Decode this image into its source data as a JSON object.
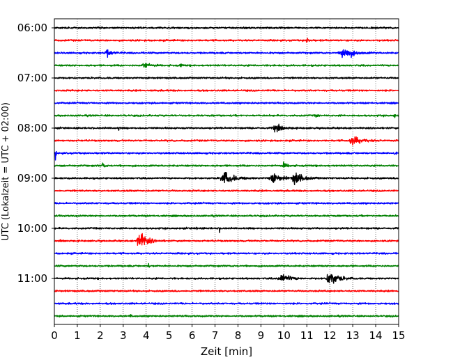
{
  "chart_data": {
    "type": "line",
    "title": "",
    "xlabel": "Zeit  [min]",
    "ylabel": "UTC (Lokalzeit = UTC + 02:00)",
    "xlim": [
      0,
      15
    ],
    "x_ticks": [
      0,
      1,
      2,
      3,
      4,
      5,
      6,
      7,
      8,
      9,
      10,
      11,
      12,
      13,
      14,
      15
    ],
    "y_tick_labels": [
      "06:00",
      "07:00",
      "08:00",
      "09:00",
      "10:00",
      "11:00"
    ],
    "grid": "vertical dotted",
    "legend": "none",
    "row_interval_minutes": 15,
    "color_cycle": [
      "#000000",
      "#ff0000",
      "#0000ff",
      "#008000"
    ],
    "series": [
      {
        "row_start": "06:00",
        "color": "#000000",
        "events": []
      },
      {
        "row_start": "06:15",
        "color": "#ff0000",
        "events": [
          {
            "t": 11.0,
            "amp": 1.3,
            "dur": 0.1
          }
        ]
      },
      {
        "row_start": "06:30",
        "color": "#0000ff",
        "events": [
          {
            "t": 2.3,
            "amp": 1.6,
            "dur": 0.25
          },
          {
            "t": 12.6,
            "amp": 2.8,
            "dur": 0.45
          }
        ]
      },
      {
        "row_start": "06:45",
        "color": "#008000",
        "events": [
          {
            "t": 3.9,
            "amp": 1.3,
            "dur": 0.3
          },
          {
            "t": 5.5,
            "amp": 1.2,
            "dur": 0.06
          }
        ]
      },
      {
        "row_start": "07:00",
        "color": "#000000",
        "events": []
      },
      {
        "row_start": "07:15",
        "color": "#ff0000",
        "events": []
      },
      {
        "row_start": "07:30",
        "color": "#0000ff",
        "events": []
      },
      {
        "row_start": "07:45",
        "color": "#008000",
        "events": [
          {
            "t": 11.4,
            "amp": 1.1,
            "dur": 0.06
          },
          {
            "t": 14.8,
            "amp": 1.0,
            "dur": 0.06
          }
        ]
      },
      {
        "row_start": "08:00",
        "color": "#000000",
        "events": [
          {
            "t": 9.6,
            "amp": 1.6,
            "dur": 0.35
          },
          {
            "t": 2.8,
            "amp": 0.9,
            "dur": 0.05
          }
        ]
      },
      {
        "row_start": "08:15",
        "color": "#ff0000",
        "events": [
          {
            "t": 13.0,
            "amp": 1.8,
            "dur": 0.5
          }
        ]
      },
      {
        "row_start": "08:30",
        "color": "#0000ff",
        "events": [
          {
            "t": 0.05,
            "amp": 3.5,
            "dur": 0.03
          },
          {
            "t": 14.8,
            "amp": 1.3,
            "dur": 0.06
          }
        ]
      },
      {
        "row_start": "08:45",
        "color": "#008000",
        "events": [
          {
            "t": 2.1,
            "amp": 1.2,
            "dur": 0.1
          },
          {
            "t": 10.0,
            "amp": 1.1,
            "dur": 0.2
          }
        ]
      },
      {
        "row_start": "09:00",
        "color": "#000000",
        "events": [
          {
            "t": 7.4,
            "amp": 2.6,
            "dur": 0.5
          },
          {
            "t": 9.5,
            "amp": 1.8,
            "dur": 0.5
          },
          {
            "t": 10.5,
            "amp": 2.6,
            "dur": 0.4
          }
        ]
      },
      {
        "row_start": "09:15",
        "color": "#ff0000",
        "events": []
      },
      {
        "row_start": "09:30",
        "color": "#0000ff",
        "events": []
      },
      {
        "row_start": "09:45",
        "color": "#008000",
        "events": []
      },
      {
        "row_start": "10:00",
        "color": "#000000",
        "events": [
          {
            "t": 6.2,
            "amp": 0.9,
            "dur": 0.05
          },
          {
            "t": 7.2,
            "amp": 1.0,
            "dur": 0.05
          }
        ]
      },
      {
        "row_start": "10:15",
        "color": "#ff0000",
        "events": [
          {
            "t": 3.7,
            "amp": 4.0,
            "dur": 0.4
          }
        ]
      },
      {
        "row_start": "10:30",
        "color": "#0000ff",
        "events": []
      },
      {
        "row_start": "10:45",
        "color": "#008000",
        "events": [
          {
            "t": 4.1,
            "amp": 0.9,
            "dur": 0.05
          }
        ]
      },
      {
        "row_start": "11:00",
        "color": "#000000",
        "events": [
          {
            "t": 9.9,
            "amp": 2.0,
            "dur": 0.4
          },
          {
            "t": 12.0,
            "amp": 3.6,
            "dur": 0.4
          }
        ]
      },
      {
        "row_start": "11:15",
        "color": "#ff0000",
        "events": []
      },
      {
        "row_start": "11:30",
        "color": "#0000ff",
        "events": []
      },
      {
        "row_start": "11:45",
        "color": "#008000",
        "events": [
          {
            "t": 3.3,
            "amp": 0.9,
            "dur": 0.05
          }
        ]
      }
    ]
  }
}
